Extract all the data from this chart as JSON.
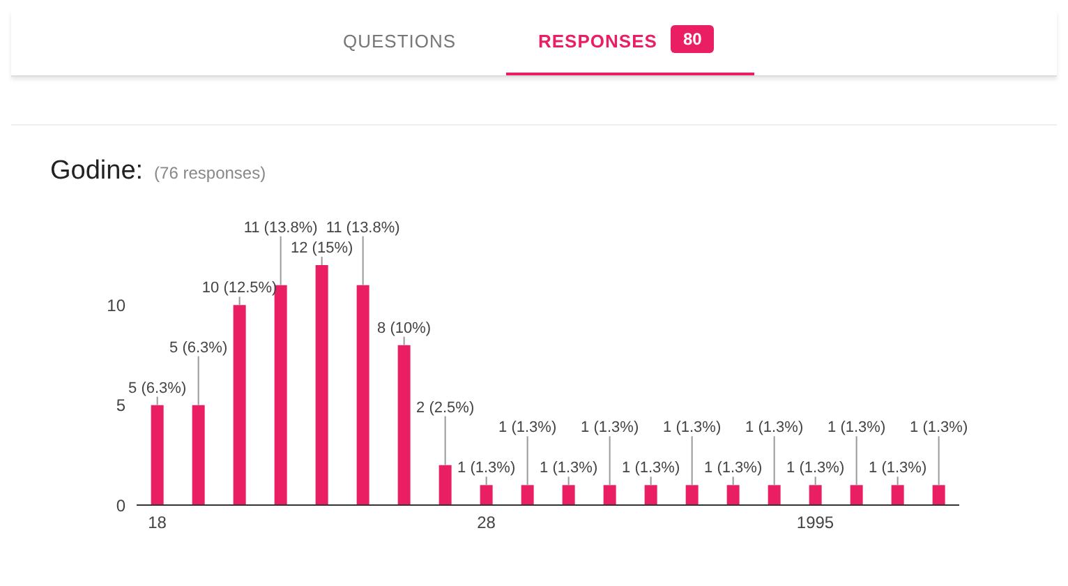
{
  "chart_data": {
    "type": "bar",
    "title": "Godine:",
    "subtitle": "(76 responses)",
    "annotations": [
      "QUESTIONS",
      "RESPONSES",
      "80"
    ],
    "categories": [
      "18",
      null,
      null,
      null,
      null,
      null,
      null,
      null,
      "28",
      null,
      null,
      null,
      null,
      null,
      null,
      null,
      "1995",
      null,
      null,
      null
    ],
    "values": [
      5,
      5,
      10,
      11,
      12,
      11,
      8,
      2,
      1,
      1,
      1,
      1,
      1,
      1,
      1,
      1,
      1,
      1,
      1,
      1
    ],
    "value_labels": [
      "5 (6.3%)",
      "5 (6.3%)",
      "10 (12.5%)",
      "11 (13.8%)",
      "12 (15%)",
      "11 (13.8%)",
      "8 (10%)",
      "2 (2.5%)",
      "1 (1.3%)",
      "1 (1.3%)",
      "1 (1.3%)",
      "1 (1.3%)",
      "1 (1.3%)",
      "1 (1.3%)",
      "1 (1.3%)",
      "1 (1.3%)",
      "1 (1.3%)",
      "1 (1.3%)",
      "1 (1.3%)",
      "1 (1.3%)"
    ],
    "color": "#e91e63",
    "ylim": [
      0,
      12
    ],
    "yticks": [
      0,
      5,
      10
    ],
    "grid": false,
    "legend": false
  }
}
